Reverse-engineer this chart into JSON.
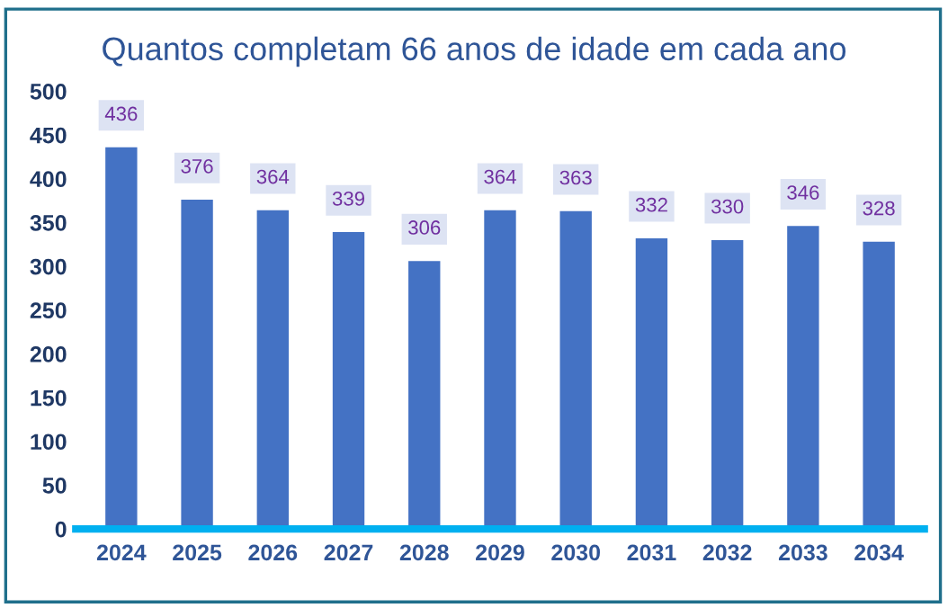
{
  "chart_data": {
    "type": "bar",
    "title": "Quantos completam 66 anos de idade em cada ano",
    "categories": [
      "2024",
      "2025",
      "2026",
      "2027",
      "2028",
      "2029",
      "2030",
      "2031",
      "2032",
      "2033",
      "2034"
    ],
    "values": [
      436,
      376,
      364,
      339,
      306,
      364,
      363,
      332,
      330,
      346,
      328
    ],
    "color": "#4472c4",
    "ylim": [
      0,
      500
    ],
    "yticks": [
      0,
      50,
      100,
      150,
      200,
      250,
      300,
      350,
      400,
      450,
      500
    ],
    "grid": false,
    "data_labels": true
  }
}
